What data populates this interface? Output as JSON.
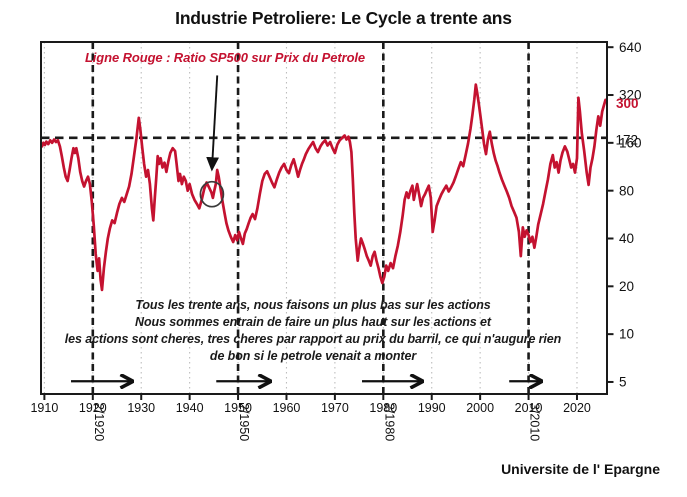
{
  "title": "Industrie Petroliere: Le Cycle a trente ans",
  "annotation": {
    "legend_note": "Ligne Rouge : Ratio SP500 sur Prix du Petrole",
    "commentary_lines": [
      "Tous les trente ans, nous faisons un plus bas sur les actions",
      "Nous sommes entrain de faire un plus haut sur les actions et",
      "les actions sont cheres, tres cheres par rapport au prix du barril, ce qui n'augure rien",
      "de bon si le petrole venait a monter"
    ]
  },
  "source": "Universite de l' Epargne",
  "colors": {
    "line": "#c41230",
    "axis": "#1a1a1a",
    "grid": "#bdbdbd",
    "circle": "#3a3a3a"
  },
  "chart_data": {
    "type": "line",
    "title": "Industrie Petroliere: Le Cycle a trente ans",
    "xlabel": "",
    "ylabel": "",
    "y_scale": "log2",
    "grid": "vertical dotted gridlines at each decade",
    "legend_position": "top-left annotation",
    "xlim": [
      1909.3,
      2026.2
    ],
    "ylim": [
      4.2,
      690
    ],
    "x_ticks": [
      1910,
      1920,
      1930,
      1940,
      1950,
      1960,
      1970,
      1980,
      1990,
      2000,
      2010,
      2020
    ],
    "y_ticks": [
      640,
      320,
      160,
      80,
      40,
      20,
      10,
      5
    ],
    "mean_line_value": 172,
    "mean_value_label": "172",
    "current_value_label": "300",
    "cycle_years": [
      1920,
      1950,
      1980,
      2010
    ],
    "cycle_date_labels": [
      "2/1920",
      "2/1950",
      "2/1980",
      "3/2010"
    ],
    "trend_arrows_years": [
      [
        1915.5,
        1928.9
      ],
      [
        1945.5,
        1957.4
      ],
      [
        1975.6,
        1988.8
      ],
      [
        2006.0,
        2013.4
      ]
    ],
    "trend_arrow_level": 5.05,
    "highlight": {
      "circle_year": 1944.6,
      "circle_value": 76,
      "pointer_from": [
        1945.7,
        425
      ],
      "pointer_to": [
        1944.6,
        109
      ]
    },
    "series": [
      {
        "name": "Ratio SP500 sur Prix du Petrole",
        "color": "#c41230",
        "points": [
          [
            1909.5,
            152
          ],
          [
            1909.8,
            160
          ],
          [
            1910.1,
            155
          ],
          [
            1910.4,
            163
          ],
          [
            1910.8,
            157
          ],
          [
            1911.2,
            166
          ],
          [
            1911.6,
            160
          ],
          [
            1912,
            168
          ],
          [
            1912.4,
            162
          ],
          [
            1912.8,
            166
          ],
          [
            1913.2,
            152
          ],
          [
            1913.6,
            132
          ],
          [
            1914,
            112
          ],
          [
            1914.4,
            98
          ],
          [
            1914.8,
            92
          ],
          [
            1915.2,
            108
          ],
          [
            1915.6,
            128
          ],
          [
            1916,
            148
          ],
          [
            1916.3,
            138
          ],
          [
            1916.6,
            148
          ],
          [
            1917,
            128
          ],
          [
            1917.4,
            105
          ],
          [
            1917.8,
            92
          ],
          [
            1918.2,
            85
          ],
          [
            1918.6,
            92
          ],
          [
            1919,
            98
          ],
          [
            1919.4,
            88
          ],
          [
            1919.8,
            68
          ],
          [
            1920.2,
            48
          ],
          [
            1920.6,
            32
          ],
          [
            1921,
            25
          ],
          [
            1921.3,
            30
          ],
          [
            1921.6,
            22
          ],
          [
            1921.9,
            19
          ],
          [
            1922.3,
            26
          ],
          [
            1922.7,
            33
          ],
          [
            1923.1,
            40
          ],
          [
            1923.5,
            46
          ],
          [
            1924,
            52
          ],
          [
            1924.5,
            50
          ],
          [
            1925,
            58
          ],
          [
            1925.5,
            66
          ],
          [
            1926,
            72
          ],
          [
            1926.5,
            68
          ],
          [
            1927,
            76
          ],
          [
            1927.5,
            85
          ],
          [
            1928,
            102
          ],
          [
            1928.5,
            132
          ],
          [
            1929,
            170
          ],
          [
            1929.5,
            230
          ],
          [
            1929.8,
            195
          ],
          [
            1930.2,
            150
          ],
          [
            1930.6,
            118
          ],
          [
            1931,
            98
          ],
          [
            1931.4,
            108
          ],
          [
            1931.8,
            88
          ],
          [
            1932.2,
            62
          ],
          [
            1932.5,
            52
          ],
          [
            1932.8,
            72
          ],
          [
            1933.1,
            95
          ],
          [
            1933.4,
            132
          ],
          [
            1933.7,
            118
          ],
          [
            1934,
            128
          ],
          [
            1934.4,
            112
          ],
          [
            1934.8,
            120
          ],
          [
            1935.2,
            105
          ],
          [
            1935.6,
            122
          ],
          [
            1936,
            138
          ],
          [
            1936.5,
            148
          ],
          [
            1937,
            142
          ],
          [
            1937.3,
            118
          ],
          [
            1937.7,
            92
          ],
          [
            1938,
            102
          ],
          [
            1938.4,
            88
          ],
          [
            1938.8,
            98
          ],
          [
            1939.2,
            92
          ],
          [
            1939.6,
            80
          ],
          [
            1940,
            88
          ],
          [
            1940.5,
            76
          ],
          [
            1941,
            70
          ],
          [
            1941.5,
            66
          ],
          [
            1942,
            62
          ],
          [
            1942.5,
            70
          ],
          [
            1943,
            82
          ],
          [
            1943.5,
            90
          ],
          [
            1944,
            84
          ],
          [
            1944.5,
            78
          ],
          [
            1944.8,
            72
          ],
          [
            1945.1,
            80
          ],
          [
            1945.4,
            88
          ],
          [
            1945.7,
            108
          ],
          [
            1946,
            98
          ],
          [
            1946.4,
            82
          ],
          [
            1946.8,
            68
          ],
          [
            1947.2,
            58
          ],
          [
            1947.6,
            50
          ],
          [
            1948,
            45
          ],
          [
            1948.5,
            41
          ],
          [
            1949,
            38
          ],
          [
            1949.4,
            42
          ],
          [
            1949.8,
            39
          ],
          [
            1950.2,
            44
          ],
          [
            1950.6,
            40
          ],
          [
            1951,
            37
          ],
          [
            1951.4,
            43
          ],
          [
            1951.8,
            46
          ],
          [
            1952.2,
            50
          ],
          [
            1952.6,
            54
          ],
          [
            1953,
            57
          ],
          [
            1953.5,
            53
          ],
          [
            1954,
            62
          ],
          [
            1954.5,
            76
          ],
          [
            1955,
            92
          ],
          [
            1955.5,
            102
          ],
          [
            1956,
            106
          ],
          [
            1956.5,
            98
          ],
          [
            1957,
            90
          ],
          [
            1957.5,
            84
          ],
          [
            1958,
            94
          ],
          [
            1958.5,
            104
          ],
          [
            1959,
            112
          ],
          [
            1959.5,
            118
          ],
          [
            1960,
            108
          ],
          [
            1960.5,
            103
          ],
          [
            1961,
            116
          ],
          [
            1961.5,
            126
          ],
          [
            1962,
            110
          ],
          [
            1962.4,
            98
          ],
          [
            1962.8,
            108
          ],
          [
            1963.2,
            118
          ],
          [
            1963.6,
            126
          ],
          [
            1964,
            136
          ],
          [
            1964.5,
            146
          ],
          [
            1965,
            154
          ],
          [
            1965.5,
            162
          ],
          [
            1966,
            148
          ],
          [
            1966.5,
            140
          ],
          [
            1967,
            152
          ],
          [
            1967.5,
            160
          ],
          [
            1968,
            166
          ],
          [
            1968.5,
            154
          ],
          [
            1969,
            162
          ],
          [
            1969.5,
            148
          ],
          [
            1970,
            138
          ],
          [
            1970.5,
            156
          ],
          [
            1971,
            166
          ],
          [
            1971.5,
            172
          ],
          [
            1972,
            178
          ],
          [
            1972.4,
            168
          ],
          [
            1972.8,
            175
          ],
          [
            1973.1,
            162
          ],
          [
            1973.4,
            140
          ],
          [
            1973.7,
            95
          ],
          [
            1974,
            58
          ],
          [
            1974.3,
            40
          ],
          [
            1974.7,
            29
          ],
          [
            1975,
            34
          ],
          [
            1975.4,
            40
          ],
          [
            1975.8,
            37
          ],
          [
            1976.2,
            34
          ],
          [
            1976.6,
            31
          ],
          [
            1977,
            29
          ],
          [
            1977.4,
            27
          ],
          [
            1977.8,
            31
          ],
          [
            1978.2,
            33
          ],
          [
            1978.6,
            29
          ],
          [
            1979,
            26
          ],
          [
            1979.4,
            23
          ],
          [
            1979.8,
            21
          ],
          [
            1980.2,
            23
          ],
          [
            1980.6,
            27
          ],
          [
            1981,
            25
          ],
          [
            1981.5,
            28
          ],
          [
            1982,
            26
          ],
          [
            1982.5,
            31
          ],
          [
            1983,
            36
          ],
          [
            1983.5,
            44
          ],
          [
            1984,
            56
          ],
          [
            1984.4,
            70
          ],
          [
            1984.8,
            78
          ],
          [
            1985.2,
            72
          ],
          [
            1985.6,
            80
          ],
          [
            1986,
            86
          ],
          [
            1986.3,
            70
          ],
          [
            1986.6,
            78
          ],
          [
            1987,
            88
          ],
          [
            1987.4,
            76
          ],
          [
            1987.8,
            64
          ],
          [
            1988.2,
            72
          ],
          [
            1988.6,
            76
          ],
          [
            1989,
            81
          ],
          [
            1989.4,
            86
          ],
          [
            1989.8,
            72
          ],
          [
            1990.2,
            44
          ],
          [
            1990.6,
            52
          ],
          [
            1991,
            64
          ],
          [
            1991.5,
            70
          ],
          [
            1992,
            76
          ],
          [
            1992.5,
            81
          ],
          [
            1993,
            86
          ],
          [
            1993.5,
            79
          ],
          [
            1994,
            84
          ],
          [
            1994.5,
            90
          ],
          [
            1995,
            99
          ],
          [
            1995.5,
            110
          ],
          [
            1996,
            121
          ],
          [
            1996.5,
            114
          ],
          [
            1997,
            134
          ],
          [
            1997.5,
            158
          ],
          [
            1998,
            196
          ],
          [
            1998.4,
            240
          ],
          [
            1998.8,
            300
          ],
          [
            1999.1,
            372
          ],
          [
            1999.4,
            330
          ],
          [
            1999.7,
            285
          ],
          [
            2000,
            245
          ],
          [
            2000.4,
            196
          ],
          [
            2000.8,
            158
          ],
          [
            2001.2,
            136
          ],
          [
            2001.6,
            168
          ],
          [
            2002,
            188
          ],
          [
            2002.4,
            158
          ],
          [
            2002.8,
            138
          ],
          [
            2003.2,
            124
          ],
          [
            2003.6,
            114
          ],
          [
            2004,
            104
          ],
          [
            2004.5,
            94
          ],
          [
            2005,
            86
          ],
          [
            2005.5,
            79
          ],
          [
            2006,
            72
          ],
          [
            2006.5,
            64
          ],
          [
            2007,
            59
          ],
          [
            2007.5,
            54
          ],
          [
            2008,
            44
          ],
          [
            2008.4,
            31
          ],
          [
            2008.8,
            47
          ],
          [
            2009.2,
            41
          ],
          [
            2009.6,
            45
          ],
          [
            2010,
            42
          ],
          [
            2010.4,
            38
          ],
          [
            2010.8,
            41
          ],
          [
            2011.2,
            35
          ],
          [
            2011.6,
            41
          ],
          [
            2012,
            49
          ],
          [
            2012.5,
            57
          ],
          [
            2013,
            66
          ],
          [
            2013.5,
            79
          ],
          [
            2014,
            94
          ],
          [
            2014.5,
            118
          ],
          [
            2015,
            134
          ],
          [
            2015.4,
            112
          ],
          [
            2015.8,
            121
          ],
          [
            2016.2,
            104
          ],
          [
            2016.6,
            124
          ],
          [
            2017,
            139
          ],
          [
            2017.5,
            152
          ],
          [
            2018,
            141
          ],
          [
            2018.4,
            126
          ],
          [
            2018.8,
            112
          ],
          [
            2019.2,
            118
          ],
          [
            2019.6,
            104
          ],
          [
            2020,
            128
          ],
          [
            2020.3,
            308
          ],
          [
            2020.6,
            252
          ],
          [
            2021,
            184
          ],
          [
            2021.5,
            142
          ],
          [
            2022,
            104
          ],
          [
            2022.4,
            87
          ],
          [
            2022.8,
            112
          ],
          [
            2023.2,
            128
          ],
          [
            2023.6,
            152
          ],
          [
            2024,
            192
          ],
          [
            2024.4,
            235
          ],
          [
            2024.8,
            205
          ],
          [
            2025.2,
            252
          ],
          [
            2025.6,
            278
          ],
          [
            2025.9,
            298
          ]
        ]
      }
    ]
  }
}
